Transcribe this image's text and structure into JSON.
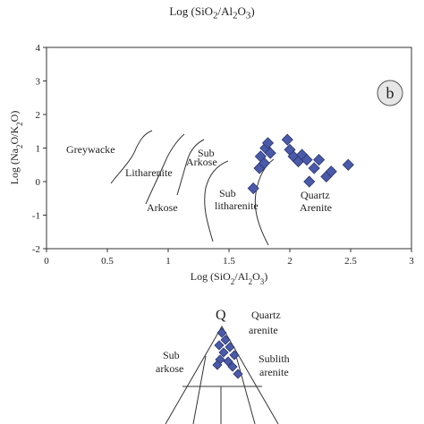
{
  "top_caption": "Log (SiO2/Al2O3)",
  "chart_data": [
    {
      "type": "scatter",
      "panel_label": "b",
      "xlabel": "Log (SiO2/Al2O3)",
      "ylabel": "Log (Na2O/K2O)",
      "xlim": [
        0,
        3
      ],
      "ylim": [
        -2,
        4
      ],
      "x_ticks": [
        "0",
        "0.5",
        "1",
        "1.5",
        "2",
        "2.5",
        "3"
      ],
      "y_ticks": [
        "4",
        "3",
        "2",
        "1",
        "0",
        "-1",
        "-2"
      ],
      "grid": false,
      "field_labels": [
        "Greywacke",
        "Litharenite",
        "Sub Arkose",
        "Arkose",
        "Sub litharenite",
        "Quartz Arenite"
      ],
      "marker_color": "#4a5aa8",
      "series": [
        {
          "values": [
            [
              1.7,
              -0.2
            ],
            [
              1.75,
              0.4
            ],
            [
              1.76,
              0.75
            ],
            [
              1.79,
              0.55
            ],
            [
              1.8,
              1.0
            ],
            [
              1.82,
              1.15
            ],
            [
              1.84,
              0.85
            ],
            [
              1.98,
              1.25
            ],
            [
              2.0,
              0.95
            ],
            [
              2.03,
              0.75
            ],
            [
              2.07,
              0.6
            ],
            [
              2.1,
              0.8
            ],
            [
              2.14,
              0.65
            ],
            [
              2.16,
              0.0
            ],
            [
              2.2,
              0.4
            ],
            [
              2.24,
              0.65
            ],
            [
              2.3,
              0.15
            ],
            [
              2.34,
              0.3
            ],
            [
              2.48,
              0.5
            ]
          ]
        }
      ]
    },
    {
      "type": "ternary",
      "apex_label": "Q",
      "field_labels": [
        "Quartz arenite",
        "Sub arkose",
        "Sublith arenite"
      ],
      "marker_color": "#4a5aa8",
      "points_in_view": 11
    }
  ]
}
